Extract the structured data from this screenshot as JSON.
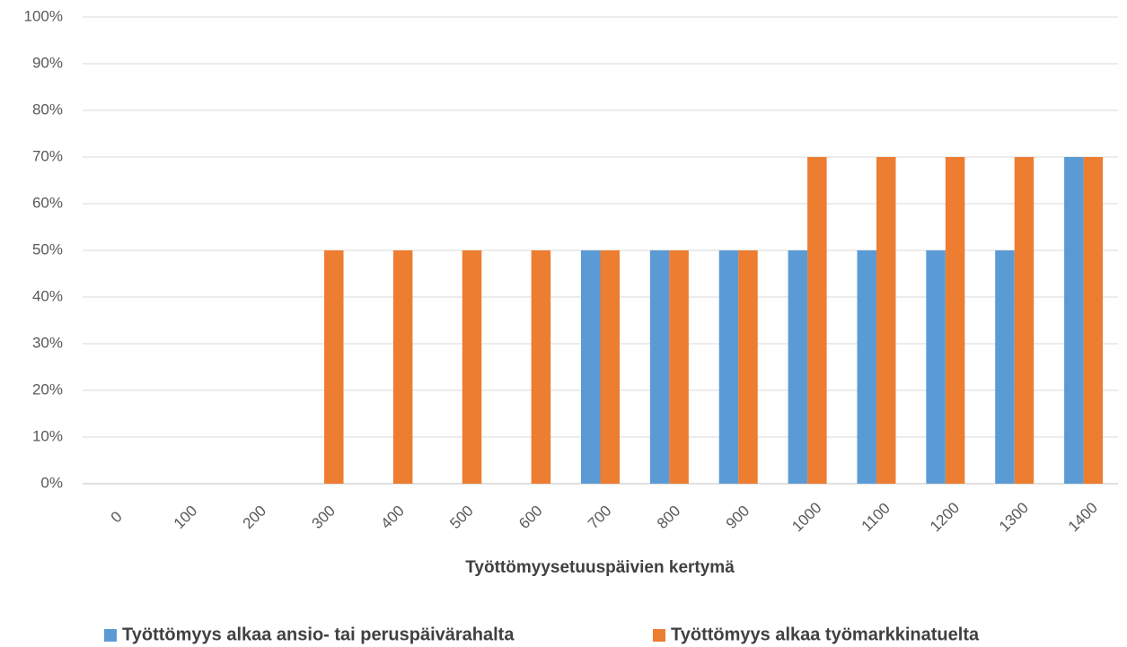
{
  "chart_data": {
    "type": "bar",
    "x_label": "Työttömyysetuuspäivien kertymä",
    "categories": [
      "0",
      "100",
      "200",
      "300",
      "400",
      "500",
      "600",
      "700",
      "800",
      "900",
      "1000",
      "1100",
      "1200",
      "1300",
      "1400"
    ],
    "series": [
      {
        "name": "Työttömyys alkaa ansio- tai peruspäivärahalta",
        "color": "#5b9bd5",
        "values": [
          0,
          0,
          0,
          0,
          0,
          0,
          0,
          50,
          50,
          50,
          50,
          50,
          50,
          50,
          70
        ]
      },
      {
        "name": "Työttömyys alkaa työmarkkinatuelta",
        "color": "#ed7d31",
        "values": [
          0,
          0,
          0,
          50,
          50,
          50,
          50,
          50,
          50,
          50,
          70,
          70,
          70,
          70,
          70
        ]
      }
    ],
    "ylim": [
      0,
      100
    ],
    "yticks": [
      {
        "value": 0,
        "label": "0%"
      },
      {
        "value": 10,
        "label": "10%"
      },
      {
        "value": 20,
        "label": "20%"
      },
      {
        "value": 30,
        "label": "30%"
      },
      {
        "value": 40,
        "label": "40%"
      },
      {
        "value": 50,
        "label": "50%"
      },
      {
        "value": 60,
        "label": "60%"
      },
      {
        "value": 70,
        "label": "70%"
      },
      {
        "value": 80,
        "label": "80%"
      },
      {
        "value": 90,
        "label": "90%"
      },
      {
        "value": 100,
        "label": "100%"
      }
    ],
    "grid": true,
    "legend": "bottom"
  }
}
